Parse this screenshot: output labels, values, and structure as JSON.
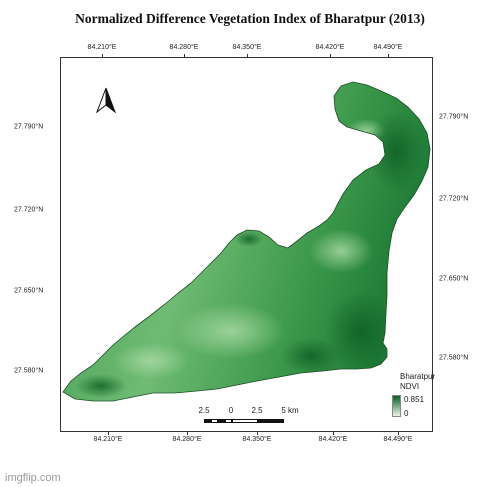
{
  "title": "Normalized Difference Vegetation Index of Bharatpur (2013)",
  "lon_ticks": [
    "84.210°E",
    "84.280°E",
    "84.350°E",
    "84.420°E",
    "84.490°E"
  ],
  "lat_ticks_left": [
    "27.790°N",
    "27.720°N",
    "27.650°N",
    "27.580°N"
  ],
  "lat_ticks_right": [
    "27.790°N",
    "27.720°N",
    "27.650°N",
    "27.580°N"
  ],
  "legend": {
    "name": "Bharatpur",
    "layer": "NDVI",
    "max": "0.851",
    "min": "0"
  },
  "scale_bar": {
    "labels": [
      "2.5",
      "0",
      "2.5",
      "5 km"
    ]
  },
  "north_arrow_icon": "north-arrow-icon",
  "colors": {
    "ndvi_high": "#0b5e21",
    "ndvi_low": "#e9f6e4",
    "region_base": "#4ea65b"
  },
  "watermark": "imgflip.com"
}
